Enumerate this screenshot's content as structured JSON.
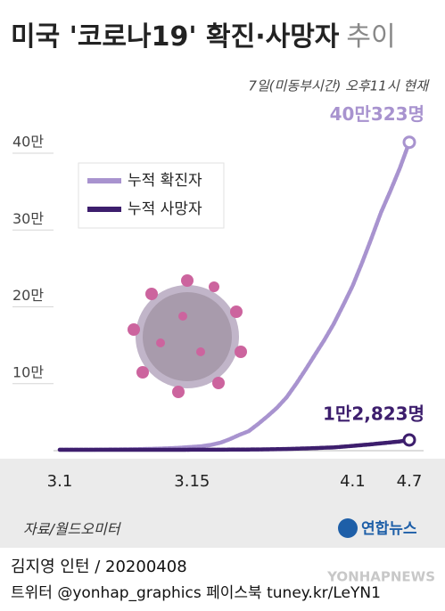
{
  "title": "미국 '코로나19' 확진·사망자",
  "title_tail": "추이",
  "subtitle": "7일(미동부시간) 오후11시 현재",
  "chart_data": {
    "type": "line",
    "categories": [
      "3.1",
      null,
      null,
      null,
      null,
      null,
      null,
      null,
      null,
      null,
      null,
      null,
      null,
      null,
      "3.15",
      null,
      null,
      null,
      null,
      null,
      null,
      null,
      null,
      null,
      null,
      null,
      null,
      null,
      null,
      null,
      null,
      "4.1",
      null,
      null,
      null,
      null,
      null,
      "4.7"
    ],
    "series": [
      {
        "name": "누적 확진자",
        "color": "#a893cf",
        "values": [
          75,
          100,
          124,
          158,
          221,
          319,
          435,
          541,
          704,
          994,
          1301,
          1697,
          2247,
          2943,
          3680,
          4663,
          6411,
          9197,
          13779,
          19367,
          24192,
          33592,
          43781,
          54856,
          68211,
          85435,
          104126,
          123578,
          142735,
          163788,
          188172,
          213372,
          243453,
          275586,
          308850,
          337072,
          366667,
          400323
        ],
        "value_labels": [
          null,
          null,
          null,
          null,
          null,
          null,
          null,
          null,
          null,
          null,
          null,
          null,
          null,
          null,
          null,
          null,
          null,
          null,
          null,
          null,
          null,
          null,
          null,
          null,
          null,
          null,
          null,
          null,
          null,
          null,
          null,
          null,
          null,
          null,
          null,
          null,
          null,
          "40만323명"
        ]
      },
      {
        "name": "누적 사망자",
        "color": "#3d1e6d",
        "values": [
          1,
          6,
          9,
          11,
          12,
          15,
          19,
          22,
          26,
          30,
          38,
          41,
          48,
          57,
          62,
          85,
          108,
          150,
          205,
          260,
          340,
          471,
          590,
          802,
          1069,
          1363,
          1698,
          2191,
          2646,
          3165,
          4099,
          5116,
          6094,
          7159,
          8454,
          9648,
          10871,
          12823
        ],
        "value_labels": [
          null,
          null,
          null,
          null,
          null,
          null,
          null,
          null,
          null,
          null,
          null,
          null,
          null,
          null,
          null,
          null,
          null,
          null,
          null,
          null,
          null,
          null,
          null,
          null,
          null,
          null,
          null,
          null,
          null,
          null,
          null,
          null,
          null,
          null,
          null,
          null,
          null,
          "1만2,823명"
        ]
      }
    ],
    "ylim": [
      0,
      400000
    ],
    "yticks": [
      {
        "value": 100000,
        "label": "10만"
      },
      {
        "value": 200000,
        "label": "20만"
      },
      {
        "value": 300000,
        "label": "30만"
      },
      {
        "value": 400000,
        "label": "40만"
      }
    ],
    "grid": true
  },
  "source": "자료/월드오미터",
  "logo": "연합뉴스",
  "credit": "김지영 인턴 / 20200408",
  "social": "트위터 @yonhap_graphics  페이스북 tuney.kr/LeYN1",
  "watermark": "YONHAPNEWS"
}
